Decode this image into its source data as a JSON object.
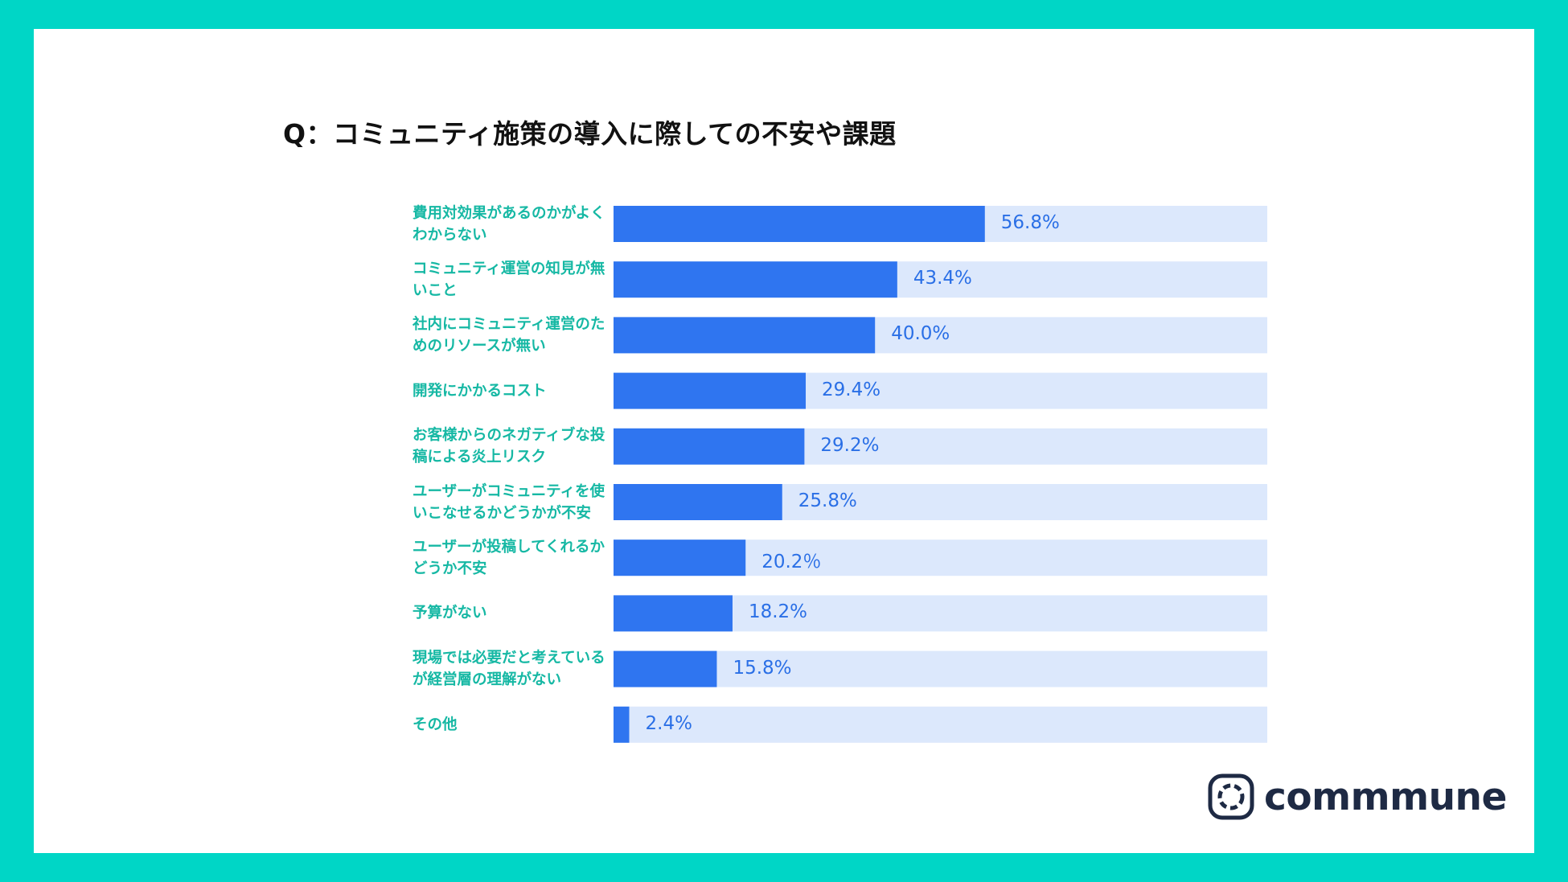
{
  "chart_data": {
    "type": "bar",
    "orientation": "horizontal",
    "title": "Q：コミュニティ施策の導入に際しての不安や課題",
    "categories": [
      "費用対効果があるのかがよくわからない",
      "コミュニティ運営の知見が無いこと",
      "社内にコミュニティ運営のためのリソースが無い",
      "開発にかかるコスト",
      "お客様からのネガティブな投稿による炎上リスク",
      "ユーザーがコミュニティを使いこなせるかどうかが不安",
      "ユーザーが投稿してくれるかどうか不安",
      "予算がない",
      "現場では必要だと考えているが経営層の理解がない",
      "その他"
    ],
    "values": [
      56.8,
      43.4,
      40.0,
      29.4,
      29.2,
      25.8,
      20.2,
      18.2,
      15.8,
      2.4
    ],
    "value_labels": [
      "56.8%",
      "43.4%",
      "40.0%",
      "29.4%",
      "29.2%",
      "25.8%",
      "20.2％",
      "18.2%",
      "15.8%",
      "2.4%"
    ],
    "xlim": [
      0,
      100
    ],
    "xlabel": "",
    "ylabel": "",
    "grid": false,
    "legend": "none",
    "colors": {
      "bar": "#2F75F0",
      "track": "#DCE8FC",
      "label": "#16B8A4",
      "value": "#2A6FE6"
    }
  },
  "brand": {
    "logo_text": "commmune",
    "logo_icon": "commmune-logo-icon"
  },
  "frame": {
    "border_color": "#00D6C6"
  }
}
